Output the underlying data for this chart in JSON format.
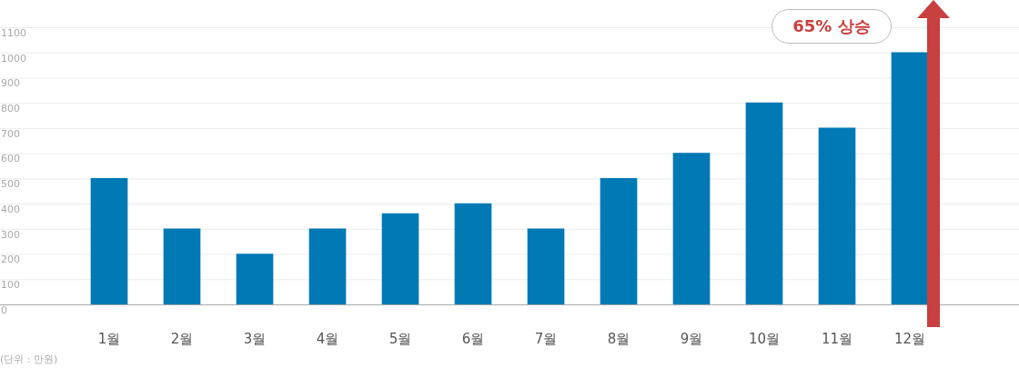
{
  "chart_data": {
    "type": "bar",
    "categories": [
      "1월",
      "2월",
      "3월",
      "4월",
      "5월",
      "6월",
      "7월",
      "8월",
      "9월",
      "10월",
      "11월",
      "12월"
    ],
    "values": [
      500,
      300,
      200,
      300,
      360,
      400,
      300,
      500,
      600,
      800,
      700,
      1000
    ],
    "color": "#0079b5",
    "ylim": [
      0,
      1100
    ],
    "yticks": [
      0,
      100,
      200,
      300,
      400,
      500,
      600,
      700,
      800,
      900,
      1000,
      1100
    ],
    "grid": "y",
    "legend": false,
    "annotations": [
      "65% 상승",
      "(단위 : 만원)"
    ]
  }
}
